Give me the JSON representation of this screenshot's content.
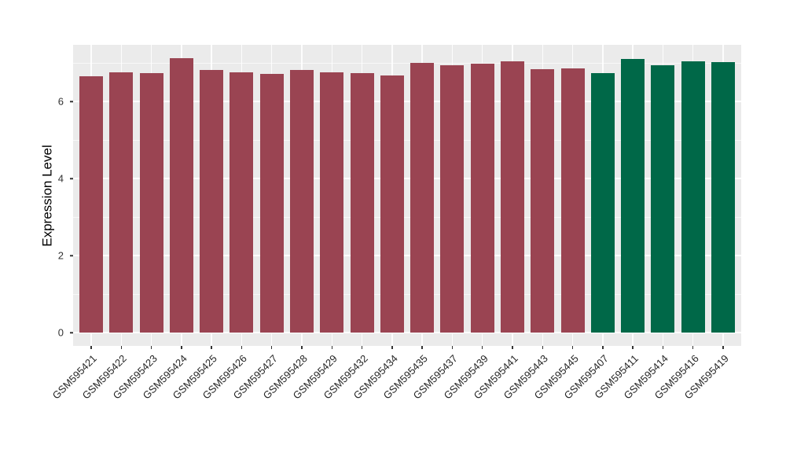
{
  "figure": {
    "background": "#FFFFFF",
    "panel_background": "#EBEBEB",
    "grid_major_color": "#FFFFFF",
    "axis_text_color": "#333333",
    "axis_title_color": "#000000"
  },
  "chart_data": {
    "type": "bar",
    "title": "",
    "xlabel": "",
    "ylabel": "Expression Level",
    "ylim": [
      0,
      7.47
    ],
    "yticks": [
      0,
      2,
      4,
      6
    ],
    "yticks_minor": [
      1,
      3,
      5,
      7
    ],
    "grid": true,
    "legend_position": "none",
    "x_tick_rotation_deg": 45,
    "categories": [
      "GSM595421",
      "GSM595422",
      "GSM595423",
      "GSM595424",
      "GSM595425",
      "GSM595426",
      "GSM595427",
      "GSM595428",
      "GSM595429",
      "GSM595432",
      "GSM595434",
      "GSM595435",
      "GSM595437",
      "GSM595439",
      "GSM595441",
      "GSM595443",
      "GSM595445",
      "GSM595407",
      "GSM595411",
      "GSM595414",
      "GSM595416",
      "GSM595419"
    ],
    "values": [
      6.65,
      6.76,
      6.73,
      7.12,
      6.82,
      6.76,
      6.71,
      6.82,
      6.76,
      6.73,
      6.67,
      7.0,
      6.94,
      6.98,
      7.04,
      6.84,
      6.86,
      6.73,
      7.1,
      6.94,
      7.04,
      7.02
    ],
    "colors": [
      "#9A4452",
      "#9A4452",
      "#9A4452",
      "#9A4452",
      "#9A4452",
      "#9A4452",
      "#9A4452",
      "#9A4452",
      "#9A4452",
      "#9A4452",
      "#9A4452",
      "#9A4452",
      "#9A4452",
      "#9A4452",
      "#9A4452",
      "#9A4452",
      "#9A4452",
      "#006848",
      "#006848",
      "#006848",
      "#006848",
      "#006848"
    ],
    "group_colors": {
      "maroon": "#9A4452",
      "green": "#006848"
    }
  }
}
